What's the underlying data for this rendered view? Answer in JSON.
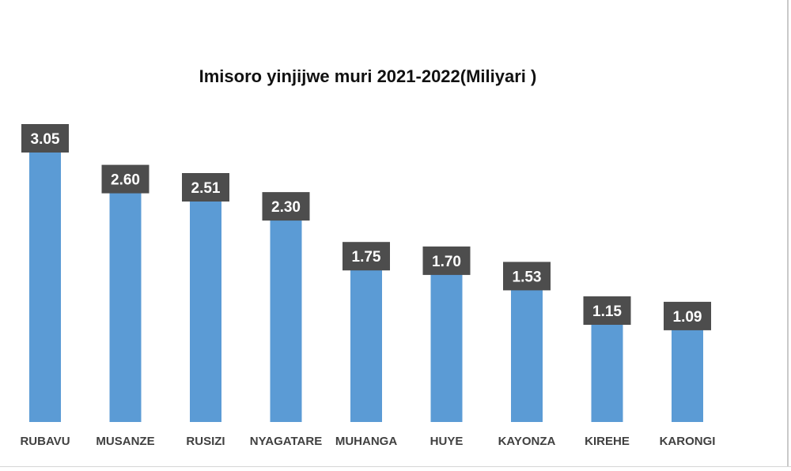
{
  "chart_data": {
    "type": "bar",
    "title": "Imisoro yinjijwe muri 2021-2022(Miliyari )",
    "xlabel": "",
    "ylabel": "",
    "categories": [
      "RUBAVU",
      "MUSANZE",
      "RUSIZI",
      "NYAGATARE",
      "MUHANGA",
      "HUYE",
      "KAYONZA",
      "KIREHE",
      "KARONGI"
    ],
    "values": [
      3.05,
      2.6,
      2.51,
      2.3,
      1.75,
      1.7,
      1.53,
      1.15,
      1.09
    ],
    "value_labels": [
      "3.05",
      "2.60",
      "2.51",
      "2.30",
      "1.75",
      "1.70",
      "1.53",
      "1.15",
      "1.09"
    ],
    "ylim": [
      0,
      3.05
    ],
    "grid": false,
    "legend": "none",
    "colors": {
      "bar": "#5b9bd5",
      "label_box": "#4d4d4d",
      "label_text": "#ffffff",
      "category_text": "#404040"
    }
  }
}
